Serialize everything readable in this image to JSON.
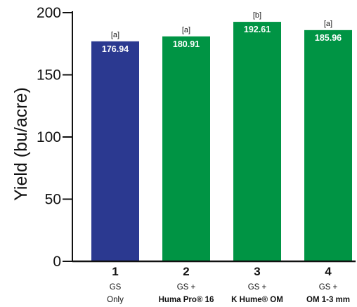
{
  "chart_data": {
    "type": "bar",
    "ylabel": "Yield (bu/acre)",
    "xlabel": "",
    "ylim": [
      0,
      200
    ],
    "yticks": [
      0,
      50,
      100,
      150,
      200
    ],
    "grid": false,
    "categories": [
      {
        "number": "1",
        "line1": "GS",
        "line2": "Only",
        "line2_bold": false
      },
      {
        "number": "2",
        "line1": "GS +",
        "line2": "Huma Pro® 16",
        "line2_bold": true
      },
      {
        "number": "3",
        "line1": "GS +",
        "line2": "K Hume® OM",
        "line2_bold": true
      },
      {
        "number": "4",
        "line1": "GS +",
        "line2": "OM 1-3 mm",
        "line2_bold": true
      }
    ],
    "values": [
      176.94,
      180.91,
      192.61,
      185.96
    ],
    "value_labels": [
      "176.94",
      "180.91",
      "192.61",
      "185.96"
    ],
    "significance": [
      "[a]",
      "[a]",
      "[b]",
      "[a]"
    ],
    "colors": [
      "#2b3990",
      "#009444",
      "#009444",
      "#009444"
    ]
  }
}
